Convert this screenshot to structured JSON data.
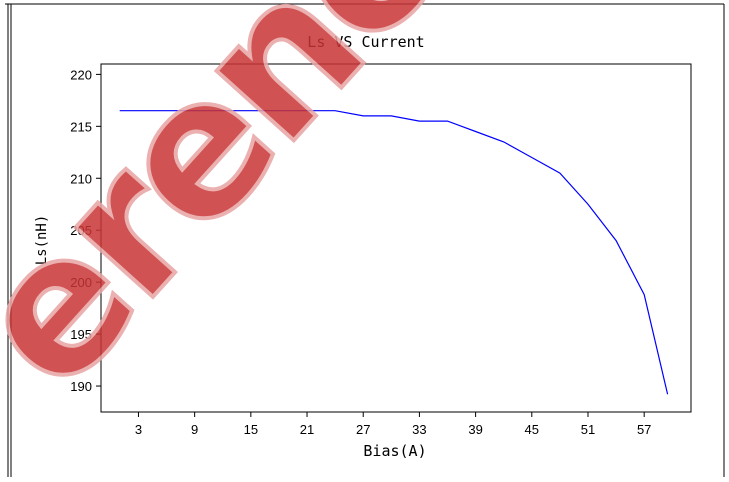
{
  "chart_data": {
    "type": "line",
    "title": "Ls VS Current",
    "xlabel": "Bias(A)",
    "ylabel": "Ls(nH)",
    "xlim": [
      -1,
      62
    ],
    "ylim": [
      187.5,
      221
    ],
    "xticks": [
      3,
      9,
      15,
      21,
      27,
      33,
      39,
      45,
      51,
      57
    ],
    "yticks": [
      190,
      195,
      200,
      205,
      210,
      215,
      220
    ],
    "grid": false,
    "series": [
      {
        "color": "#0000ff",
        "x": [
          1,
          6,
          12,
          18,
          24,
          27,
          30,
          33,
          36,
          39,
          42,
          45,
          48,
          51,
          54,
          57,
          59.5
        ],
        "y": [
          216.5,
          216.5,
          216.5,
          216.5,
          216.5,
          216,
          216,
          215.5,
          215.5,
          214.5,
          213.5,
          212,
          210.5,
          207.5,
          204,
          198.8,
          189.2
        ]
      }
    ]
  },
  "watermark": {
    "text": "Reference",
    "color": "#cc2b2b"
  }
}
